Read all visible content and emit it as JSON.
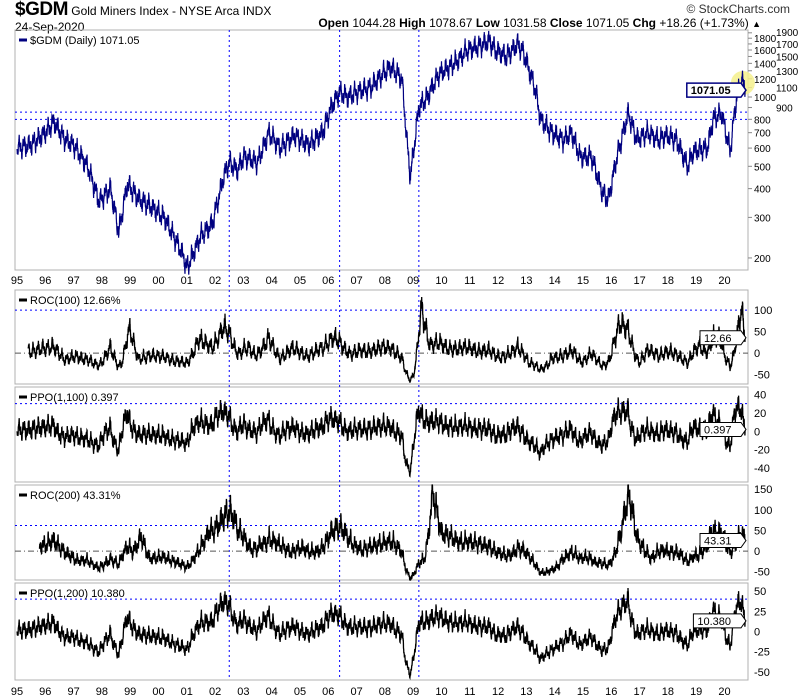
{
  "header": {
    "symbol": "$GDM",
    "name": "Gold Miners Index - NYSE Arca INDX",
    "date": "24-Sep-2020",
    "copyright": "© StockCharts.com",
    "open_label": "Open",
    "open": "1044.28",
    "high_label": "High",
    "high": "1078.67",
    "low_label": "Low",
    "low": "1031.58",
    "close_label": "Close",
    "close": "1071.05",
    "chg_label": "Chg",
    "chg": "+18.26 (+1.73%)",
    "chg_icon": "up-triangle-icon"
  },
  "colors": {
    "price": "#000080",
    "indicator": "#000000",
    "guide": "#0000ff",
    "highlight": "#f5f08c",
    "frame": "#b0b0b0"
  },
  "panels": {
    "main": {
      "legend": "$GDM (Daily) 1071.05",
      "tag": "1071.05"
    },
    "roc100": {
      "legend": "ROC(100) 12.66%",
      "tag": "12.66"
    },
    "ppo100": {
      "legend": "PPO(1,100) 0.397",
      "tag": "0.397"
    },
    "roc200": {
      "legend": "ROC(200) 43.31%",
      "tag": "43.31"
    },
    "ppo200": {
      "legend": "PPO(1,200) 10.380",
      "tag": "10.380"
    }
  },
  "chart_data": {
    "type": "line",
    "title": "$GDM Gold Miners Index - NYSE Arca INDX",
    "x_tick_labels": [
      "95",
      "96",
      "97",
      "98",
      "99",
      "00",
      "01",
      "02",
      "03",
      "04",
      "05",
      "06",
      "07",
      "08",
      "09",
      "10",
      "11",
      "12",
      "13",
      "14",
      "15",
      "16",
      "17",
      "18",
      "19",
      "20"
    ],
    "main": {
      "scale": "log",
      "y_ticks": [
        200,
        300,
        400,
        500,
        600,
        700,
        800,
        900,
        1000,
        1100,
        1200,
        1300,
        1400,
        1500,
        1600,
        1700,
        1800,
        1900
      ],
      "guides": [
        800,
        860
      ],
      "series": [
        [
          1995.0,
          600
        ],
        [
          1995.5,
          620
        ],
        [
          1996.0,
          700
        ],
        [
          1996.3,
          780
        ],
        [
          1996.7,
          650
        ],
        [
          1997.0,
          620
        ],
        [
          1997.5,
          500
        ],
        [
          1997.9,
          350
        ],
        [
          1998.3,
          400
        ],
        [
          1998.6,
          260
        ],
        [
          1998.9,
          420
        ],
        [
          1999.3,
          360
        ],
        [
          1999.8,
          330
        ],
        [
          2000.2,
          300
        ],
        [
          2000.6,
          240
        ],
        [
          2000.9,
          200
        ],
        [
          2001.0,
          180
        ],
        [
          2001.5,
          250
        ],
        [
          2001.9,
          280
        ],
        [
          2002.3,
          450
        ],
        [
          2002.5,
          520
        ],
        [
          2002.8,
          480
        ],
        [
          2003.0,
          550
        ],
        [
          2003.5,
          520
        ],
        [
          2003.9,
          700
        ],
        [
          2004.3,
          600
        ],
        [
          2004.8,
          680
        ],
        [
          2005.3,
          620
        ],
        [
          2005.8,
          700
        ],
        [
          2006.1,
          900
        ],
        [
          2006.4,
          1050
        ],
        [
          2006.7,
          1000
        ],
        [
          2007.0,
          1050
        ],
        [
          2007.5,
          1100
        ],
        [
          2007.9,
          1250
        ],
        [
          2008.2,
          1350
        ],
        [
          2008.6,
          1200
        ],
        [
          2008.8,
          600
        ],
        [
          2008.9,
          450
        ],
        [
          2009.2,
          900
        ],
        [
          2009.5,
          1000
        ],
        [
          2009.9,
          1250
        ],
        [
          2010.3,
          1350
        ],
        [
          2010.6,
          1450
        ],
        [
          2010.9,
          1600
        ],
        [
          2011.3,
          1650
        ],
        [
          2011.7,
          1750
        ],
        [
          2011.9,
          1600
        ],
        [
          2012.3,
          1500
        ],
        [
          2012.7,
          1700
        ],
        [
          2012.9,
          1550
        ],
        [
          2013.3,
          1100
        ],
        [
          2013.5,
          800
        ],
        [
          2013.9,
          700
        ],
        [
          2014.3,
          650
        ],
        [
          2014.6,
          700
        ],
        [
          2014.9,
          550
        ],
        [
          2015.3,
          550
        ],
        [
          2015.7,
          380
        ],
        [
          2015.9,
          360
        ],
        [
          2016.2,
          550
        ],
        [
          2016.6,
          850
        ],
        [
          2016.9,
          650
        ],
        [
          2017.3,
          700
        ],
        [
          2017.7,
          650
        ],
        [
          2017.9,
          680
        ],
        [
          2018.3,
          650
        ],
        [
          2018.7,
          500
        ],
        [
          2018.9,
          580
        ],
        [
          2019.4,
          600
        ],
        [
          2019.6,
          800
        ],
        [
          2019.9,
          850
        ],
        [
          2020.2,
          580
        ],
        [
          2020.4,
          950
        ],
        [
          2020.6,
          1200
        ],
        [
          2020.73,
          1071.05
        ]
      ]
    },
    "roc100": {
      "y_ticks": [
        100,
        50,
        0,
        -50
      ],
      "y_range": [
        -72,
        147
      ],
      "guide": 100
    },
    "ppo100": {
      "y_ticks": [
        40,
        20,
        0,
        -20,
        -40
      ],
      "y_range": [
        -55,
        48
      ],
      "guide": 30
    },
    "roc200": {
      "y_ticks": [
        150,
        100,
        50,
        0,
        -50
      ],
      "y_range": [
        -70,
        160
      ],
      "guide": 62
    },
    "ppo200": {
      "y_ticks": [
        50,
        25,
        0,
        -25,
        -50
      ],
      "y_range": [
        -60,
        60
      ],
      "guide": 40
    },
    "event_lines": [
      2002.5,
      2006.4,
      2009.2
    ]
  }
}
